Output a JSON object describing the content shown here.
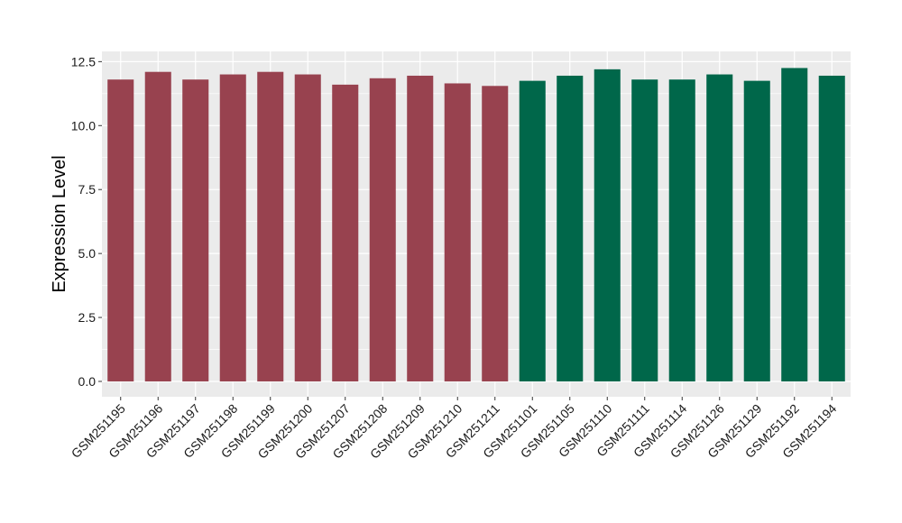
{
  "chart_data": {
    "type": "bar",
    "title": "",
    "xlabel": "",
    "ylabel": "Expression Level",
    "ylim": [
      -0.6,
      12.9
    ],
    "yticks": [
      "0.0",
      "2.5",
      "5.0",
      "7.5",
      "10.0",
      "12.5"
    ],
    "grid": true,
    "legend": "none",
    "categories": [
      "GSM251195",
      "GSM251196",
      "GSM251197",
      "GSM251198",
      "GSM251199",
      "GSM251200",
      "GSM251207",
      "GSM251208",
      "GSM251209",
      "GSM251210",
      "GSM251211",
      "GSM251101",
      "GSM251105",
      "GSM251110",
      "GSM251111",
      "GSM251114",
      "GSM251126",
      "GSM251129",
      "GSM251192",
      "GSM251194"
    ],
    "values": [
      11.8,
      12.1,
      11.8,
      12.0,
      12.1,
      12.0,
      11.6,
      11.85,
      11.95,
      11.65,
      11.55,
      11.75,
      11.95,
      12.2,
      11.8,
      11.8,
      12.0,
      11.75,
      12.25,
      11.95
    ],
    "groups": [
      0,
      0,
      0,
      0,
      0,
      0,
      0,
      0,
      0,
      0,
      0,
      1,
      1,
      1,
      1,
      1,
      1,
      1,
      1,
      1
    ],
    "group_colors": [
      "#98424f",
      "#00674a"
    ],
    "panel_color": "#ebebeb",
    "grid_color": "#ffffff"
  }
}
